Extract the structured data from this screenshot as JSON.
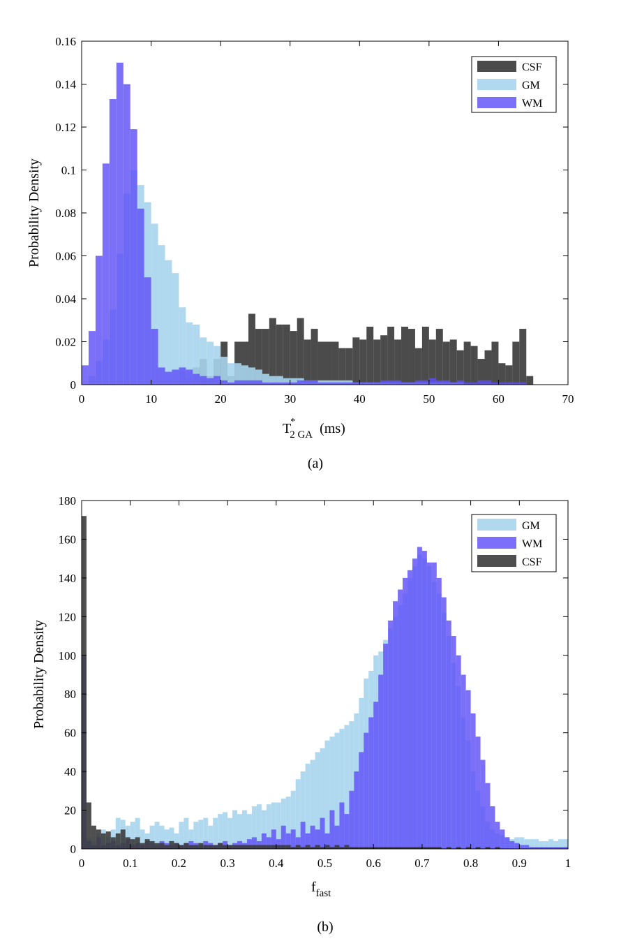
{
  "chart_data": [
    {
      "type": "histogram",
      "caption": "(a)",
      "xlabel": {
        "main": "T",
        "sup": "*",
        "sub": "2 GA",
        "unit": "(ms)"
      },
      "ylabel": "Probability Density",
      "xlim": [
        0,
        70
      ],
      "ylim": [
        0,
        0.16
      ],
      "xticks": [
        0,
        10,
        20,
        30,
        40,
        50,
        60,
        70
      ],
      "yticks": [
        0,
        0.02,
        0.04,
        0.06,
        0.08,
        0.1,
        0.12,
        0.14,
        0.16
      ],
      "ytick_labels": [
        "0",
        "0.02",
        "0.04",
        "0.06",
        "0.08",
        "0.1",
        "0.12",
        "0.14",
        "0.16"
      ],
      "bin_width": 1,
      "legend_position": "top-right",
      "legend": [
        "CSF",
        "GM",
        "WM"
      ],
      "series": [
        {
          "name": "CSF",
          "color": "#3c3c3c",
          "opacity": 0.92,
          "values": [
            0,
            0,
            0,
            0,
            0,
            0,
            0,
            0,
            0,
            0,
            0,
            0,
            0,
            0,
            0.006,
            0.003,
            0.008,
            0.012,
            0.004,
            0.012,
            0.02,
            0.004,
            0.02,
            0.02,
            0.033,
            0.026,
            0.026,
            0.031,
            0.028,
            0.028,
            0.025,
            0.031,
            0.021,
            0.026,
            0.02,
            0.02,
            0.02,
            0.017,
            0.017,
            0.022,
            0.021,
            0.027,
            0.021,
            0.023,
            0.027,
            0.021,
            0.027,
            0.026,
            0.017,
            0.027,
            0.021,
            0.026,
            0.02,
            0.021,
            0.016,
            0.02,
            0.018,
            0.012,
            0.016,
            0.02,
            0.01,
            0.009,
            0.02,
            0.026,
            0.004,
            0,
            0,
            0,
            0,
            0
          ]
        },
        {
          "name": "GM",
          "color": "#a7d5ee",
          "opacity": 0.9,
          "values": [
            0,
            0.004,
            0.011,
            0.021,
            0.035,
            0.061,
            0.089,
            0.1,
            0.093,
            0.085,
            0.075,
            0.065,
            0.058,
            0.052,
            0.036,
            0.029,
            0.028,
            0.022,
            0.02,
            0.018,
            0.013,
            0.01,
            0.01,
            0.009,
            0.008,
            0.007,
            0.005,
            0.004,
            0.004,
            0.003,
            0.003,
            0.003,
            0.002,
            0.002,
            0.002,
            0.002,
            0.002,
            0.002,
            0.002,
            0.001,
            0.001,
            0.001,
            0.001,
            0.001,
            0.001,
            0.001,
            0.001,
            0.001,
            0.001,
            0.001,
            0.001,
            0.001,
            0.001,
            0.001,
            0.001,
            0,
            0,
            0,
            0,
            0,
            0,
            0,
            0,
            0,
            0,
            0,
            0,
            0,
            0,
            0
          ]
        },
        {
          "name": "WM",
          "color": "#5f50f8",
          "opacity": 0.82,
          "values": [
            0.009,
            0.025,
            0.06,
            0.103,
            0.133,
            0.15,
            0.14,
            0.119,
            0.082,
            0.05,
            0.026,
            0.008,
            0.006,
            0.007,
            0.008,
            0.007,
            0.005,
            0.004,
            0.003,
            0.004,
            0.002,
            0.001,
            0.002,
            0.002,
            0.002,
            0.002,
            0.001,
            0.001,
            0.001,
            0.001,
            0.001,
            0.002,
            0.002,
            0.002,
            0.001,
            0.001,
            0.001,
            0.001,
            0.001,
            0.001,
            0.001,
            0.001,
            0.001,
            0.002,
            0.002,
            0.002,
            0.001,
            0.001,
            0.002,
            0.002,
            0.003,
            0.002,
            0.002,
            0.001,
            0.002,
            0.001,
            0.001,
            0.002,
            0.002,
            0.001,
            0.001,
            0.001,
            0.001,
            0.001,
            0,
            0,
            0,
            0,
            0,
            0
          ]
        }
      ]
    },
    {
      "type": "histogram",
      "caption": "(b)",
      "xlabel": {
        "main": "f",
        "sub": "fast"
      },
      "ylabel": "Probability Density",
      "xlim": [
        0,
        1
      ],
      "ylim": [
        0,
        180
      ],
      "xticks": [
        0,
        0.1,
        0.2,
        0.3,
        0.4,
        0.5,
        0.6,
        0.7,
        0.8,
        0.9,
        1
      ],
      "xtick_labels": [
        "0",
        "0.1",
        "0.2",
        "0.3",
        "0.4",
        "0.5",
        "0.6",
        "0.7",
        "0.8",
        "0.9",
        "1"
      ],
      "yticks": [
        0,
        20,
        40,
        60,
        80,
        100,
        120,
        140,
        160,
        180
      ],
      "bin_width": 0.01,
      "legend_position": "top-right",
      "legend": [
        "GM",
        "WM",
        "CSF"
      ],
      "series": [
        {
          "name": "GM",
          "color": "#a7d5ee",
          "opacity": 0.9,
          "values": [
            10,
            6,
            4,
            8,
            10,
            6,
            10,
            16,
            15,
            12,
            14,
            16,
            10,
            8,
            12,
            14,
            12,
            10,
            11,
            8,
            14,
            16,
            10,
            14,
            15,
            16,
            12,
            16,
            18,
            19,
            16,
            20,
            18,
            20,
            18,
            22,
            23,
            20,
            23,
            24,
            24,
            26,
            27,
            30,
            36,
            40,
            44,
            46,
            50,
            52,
            56,
            58,
            60,
            62,
            64,
            66,
            70,
            78,
            88,
            92,
            100,
            102,
            108,
            114,
            120,
            126,
            132,
            140,
            146,
            152,
            150,
            146,
            138,
            132,
            122,
            110,
            96,
            84,
            68,
            56,
            40,
            30,
            22,
            14,
            10,
            8,
            7,
            6,
            5,
            6,
            6,
            5,
            5,
            5,
            4,
            4,
            5,
            4,
            5,
            5
          ]
        },
        {
          "name": "WM",
          "color": "#5f50f8",
          "opacity": 0.82,
          "values": [
            100,
            4,
            2,
            6,
            2,
            3,
            4,
            2,
            3,
            5,
            2,
            3,
            2,
            4,
            3,
            2,
            4,
            3,
            2,
            3,
            2,
            3,
            4,
            3,
            2,
            4,
            3,
            2,
            3,
            4,
            2,
            3,
            4,
            3,
            5,
            6,
            4,
            8,
            6,
            10,
            5,
            12,
            8,
            10,
            6,
            14,
            8,
            12,
            10,
            16,
            8,
            20,
            12,
            24,
            18,
            30,
            40,
            50,
            60,
            68,
            76,
            90,
            106,
            118,
            128,
            134,
            140,
            144,
            150,
            156,
            154,
            148,
            148,
            140,
            130,
            118,
            110,
            100,
            90,
            82,
            70,
            58,
            46,
            34,
            22,
            14,
            10,
            6,
            4,
            3,
            2,
            2,
            1,
            1,
            1,
            1,
            1,
            1,
            1,
            1
          ]
        },
        {
          "name": "CSF",
          "color": "#3c3c3c",
          "opacity": 0.9,
          "values": [
            172,
            24,
            12,
            10,
            8,
            9,
            6,
            8,
            10,
            6,
            5,
            6,
            3,
            5,
            4,
            3,
            3,
            2,
            4,
            3,
            2,
            3,
            2,
            2,
            3,
            2,
            2,
            2,
            3,
            2,
            2,
            2,
            2,
            2,
            2,
            2,
            2,
            2,
            2,
            2,
            2,
            2,
            2,
            1,
            2,
            1,
            2,
            1,
            2,
            1,
            2,
            1,
            2,
            1,
            2,
            1,
            1,
            1,
            1,
            1,
            1,
            1,
            1,
            1,
            1,
            1,
            1,
            1,
            1,
            1,
            1,
            1,
            1,
            1,
            0,
            1,
            0,
            1,
            0,
            1,
            0,
            1,
            0,
            1,
            0,
            1,
            0,
            0,
            0,
            0,
            0,
            0,
            0,
            0,
            0,
            0,
            0,
            0,
            0,
            0
          ]
        }
      ]
    }
  ]
}
